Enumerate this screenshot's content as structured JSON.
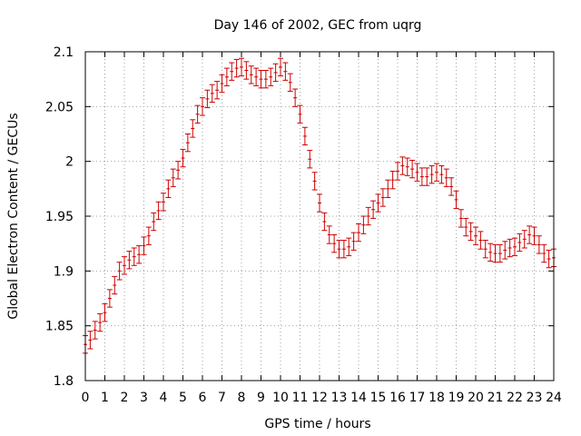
{
  "chart_data": {
    "type": "scatter",
    "title": "Day 146 of 2002, GEC from uqrg",
    "xlabel": "GPS time / hours",
    "ylabel": "Global Electron Content / GECUs",
    "xlim": [
      0,
      24
    ],
    "ylim": [
      1.8,
      2.1
    ],
    "grid": true,
    "x_ticks": [
      "0",
      "1",
      "2",
      "3",
      "4",
      "5",
      "6",
      "7",
      "8",
      "9",
      "10",
      "11",
      "12",
      "13",
      "14",
      "15",
      "16",
      "17",
      "18",
      "19",
      "20",
      "21",
      "22",
      "23",
      "24"
    ],
    "y_ticks": [
      "1.8",
      "1.85",
      "1.9",
      "1.95",
      "2",
      "2.05",
      "2.1"
    ],
    "marker_color": "#cc0000",
    "x": [
      0.0,
      0.25,
      0.5,
      0.75,
      1.0,
      1.25,
      1.5,
      1.75,
      2.0,
      2.25,
      2.5,
      2.75,
      3.0,
      3.25,
      3.5,
      3.75,
      4.0,
      4.25,
      4.5,
      4.75,
      5.0,
      5.25,
      5.5,
      5.75,
      6.0,
      6.25,
      6.5,
      6.75,
      7.0,
      7.25,
      7.5,
      7.75,
      8.0,
      8.25,
      8.5,
      8.75,
      9.0,
      9.25,
      9.5,
      9.75,
      10.0,
      10.25,
      10.5,
      10.75,
      11.0,
      11.25,
      11.5,
      11.75,
      12.0,
      12.25,
      12.5,
      12.75,
      13.0,
      13.25,
      13.5,
      13.75,
      14.0,
      14.25,
      14.5,
      14.75,
      15.0,
      15.25,
      15.5,
      15.75,
      16.0,
      16.25,
      16.5,
      16.75,
      17.0,
      17.25,
      17.5,
      17.75,
      18.0,
      18.25,
      18.5,
      18.75,
      19.0,
      19.25,
      19.5,
      19.75,
      20.0,
      20.25,
      20.5,
      20.75,
      21.0,
      21.25,
      21.5,
      21.75,
      22.0,
      22.25,
      22.5,
      22.75,
      23.0,
      23.25,
      23.5,
      23.75,
      24.0
    ],
    "y": [
      1.833,
      1.837,
      1.846,
      1.853,
      1.862,
      1.875,
      1.887,
      1.9,
      1.905,
      1.91,
      1.913,
      1.915,
      1.923,
      1.932,
      1.945,
      1.955,
      1.963,
      1.975,
      1.985,
      1.992,
      2.003,
      2.017,
      2.03,
      2.043,
      2.05,
      2.057,
      2.062,
      2.065,
      2.071,
      2.077,
      2.082,
      2.085,
      2.086,
      2.083,
      2.079,
      2.077,
      2.075,
      2.075,
      2.077,
      2.081,
      2.086,
      2.082,
      2.072,
      2.058,
      2.043,
      2.023,
      2.002,
      1.982,
      1.962,
      1.945,
      1.933,
      1.925,
      1.92,
      1.92,
      1.922,
      1.927,
      1.935,
      1.942,
      1.95,
      1.956,
      1.962,
      1.967,
      1.975,
      1.983,
      1.991,
      1.996,
      1.995,
      1.993,
      1.99,
      1.986,
      1.986,
      1.988,
      1.99,
      1.988,
      1.985,
      1.977,
      1.965,
      1.948,
      1.94,
      1.936,
      1.932,
      1.928,
      1.92,
      1.917,
      1.916,
      1.916,
      1.919,
      1.921,
      1.922,
      1.926,
      1.929,
      1.933,
      1.932,
      1.924,
      1.916,
      1.911,
      1.912
    ],
    "error": [
      0.008,
      0.008,
      0.008,
      0.008,
      0.008,
      0.008,
      0.008,
      0.008,
      0.008,
      0.008,
      0.008,
      0.008,
      0.008,
      0.008,
      0.008,
      0.008,
      0.008,
      0.008,
      0.008,
      0.008,
      0.008,
      0.008,
      0.008,
      0.008,
      0.008,
      0.008,
      0.008,
      0.008,
      0.008,
      0.008,
      0.008,
      0.008,
      0.008,
      0.008,
      0.008,
      0.008,
      0.008,
      0.008,
      0.008,
      0.008,
      0.008,
      0.008,
      0.008,
      0.008,
      0.008,
      0.008,
      0.008,
      0.008,
      0.008,
      0.008,
      0.008,
      0.008,
      0.008,
      0.008,
      0.008,
      0.008,
      0.008,
      0.008,
      0.008,
      0.008,
      0.008,
      0.008,
      0.008,
      0.008,
      0.008,
      0.008,
      0.008,
      0.008,
      0.008,
      0.008,
      0.008,
      0.008,
      0.008,
      0.008,
      0.008,
      0.008,
      0.008,
      0.008,
      0.008,
      0.008,
      0.008,
      0.008,
      0.008,
      0.008,
      0.008,
      0.008,
      0.008,
      0.008,
      0.008,
      0.008,
      0.008,
      0.008,
      0.008,
      0.008,
      0.008,
      0.008,
      0.008
    ]
  }
}
